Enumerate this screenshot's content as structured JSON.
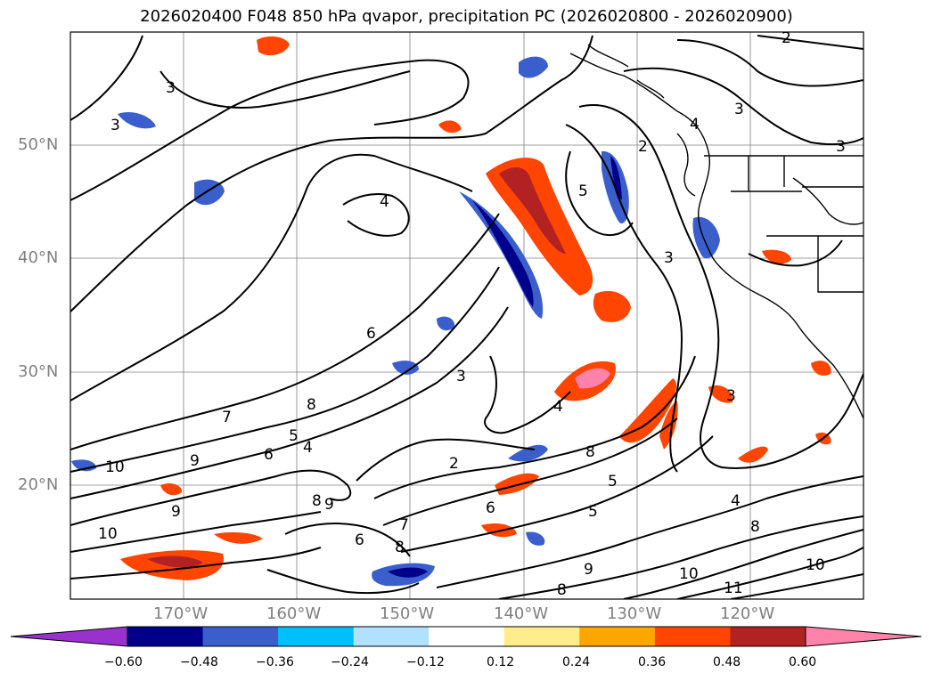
{
  "title": "2026020400 F048 850 hPa qvapor, precipitation PC (2026020800 - 2026020900)",
  "map": {
    "lat_labels": [
      "50°N",
      "40°N",
      "30°N",
      "20°N"
    ],
    "lon_labels": [
      "170°W",
      "160°W",
      "150°W",
      "140°W",
      "130°W",
      "120°W"
    ],
    "contour_labels": [
      "3",
      "3",
      "2",
      "3",
      "4",
      "5",
      "2",
      "3",
      "6",
      "3",
      "7",
      "8",
      "6",
      "5",
      "4",
      "2",
      "8",
      "5",
      "9",
      "10",
      "9",
      "7",
      "8",
      "6",
      "5",
      "6",
      "10",
      "9",
      "8",
      "4",
      "4",
      "3",
      "10",
      "11",
      "10",
      "8",
      "8",
      "4",
      "3",
      "9"
    ],
    "colors": {
      "land_line": "#000000",
      "grid": "#808080"
    }
  },
  "colorbar": {
    "ticks": [
      "−0.60",
      "−0.48",
      "−0.36",
      "−0.24",
      "−0.12",
      "0.12",
      "0.24",
      "0.36",
      "0.48",
      "0.60"
    ],
    "colors": [
      "#9932cc",
      "#00008b",
      "#3a5fcd",
      "#00bfff",
      "#b0e2ff",
      "#ffffff",
      "#ffec8b",
      "#ffa500",
      "#ff4500",
      "#b22222",
      "#ff82ab"
    ]
  }
}
